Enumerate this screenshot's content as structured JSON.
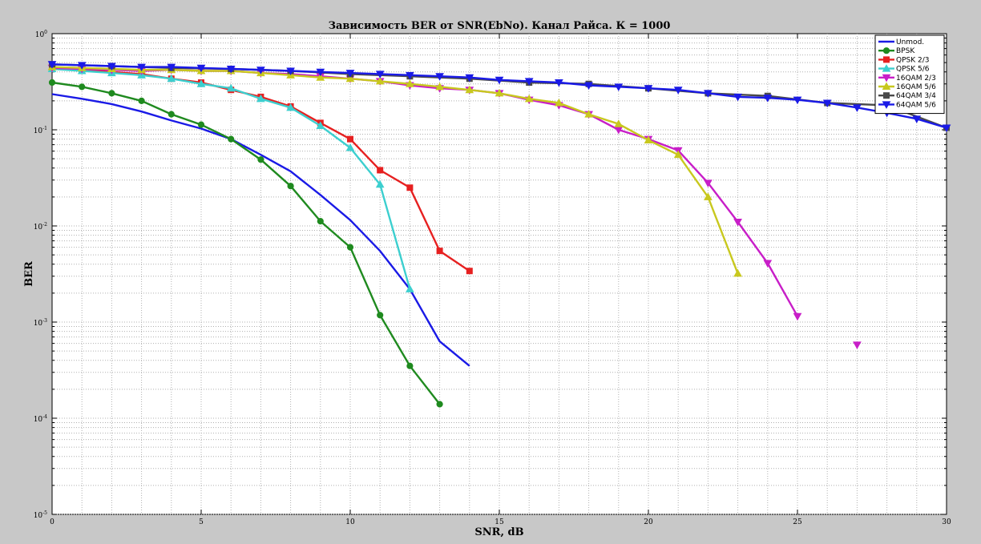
{
  "chart_data": {
    "type": "line",
    "title": "Зависимость BER от SNR(EbNo). Канал Райса. К = 1000",
    "xlabel": "SNR, dB",
    "ylabel": "BER",
    "xlim": [
      0,
      30
    ],
    "ylim": [
      1e-05,
      1
    ],
    "yscale": "log",
    "grid": true,
    "legend_position": "top-right",
    "xticks": [
      0,
      5,
      10,
      15,
      20,
      25,
      30
    ],
    "yticks": [
      {
        "value": 1,
        "base": "10",
        "exp": "0"
      },
      {
        "value": 0.1,
        "base": "10",
        "exp": "-1"
      },
      {
        "value": 0.01,
        "base": "10",
        "exp": "-2"
      },
      {
        "value": 0.001,
        "base": "10",
        "exp": "-3"
      },
      {
        "value": 0.0001,
        "base": "10",
        "exp": "-4"
      },
      {
        "value": 1e-05,
        "base": "10",
        "exp": "-5"
      }
    ],
    "series": [
      {
        "name": "Unmod.",
        "color": "#1a1ae6",
        "marker": "none",
        "x": [
          0,
          1,
          2,
          3,
          4,
          5,
          6,
          7,
          8,
          9,
          10,
          11,
          12,
          13,
          14
        ],
        "y": [
          0.235,
          0.21,
          0.185,
          0.155,
          0.125,
          0.103,
          0.08,
          0.055,
          0.037,
          0.021,
          0.0115,
          0.0055,
          0.0022,
          0.00063,
          0.00035
        ]
      },
      {
        "name": "BPSK",
        "color": "#1f8a1f",
        "marker": "circle",
        "x": [
          0,
          1,
          2,
          3,
          4,
          5,
          6,
          7,
          8,
          9,
          10,
          11,
          12,
          13
        ],
        "y": [
          0.31,
          0.28,
          0.24,
          0.2,
          0.145,
          0.113,
          0.08,
          0.049,
          0.026,
          0.0112,
          0.006,
          0.00118,
          0.00035,
          0.00014
        ]
      },
      {
        "name": "QPSK 2/3",
        "color": "#e62020",
        "marker": "square",
        "x": [
          0,
          1,
          2,
          3,
          4,
          5,
          6,
          7,
          8,
          9,
          10,
          11,
          12,
          13,
          14
        ],
        "y": [
          0.45,
          0.42,
          0.4,
          0.38,
          0.34,
          0.31,
          0.26,
          0.22,
          0.175,
          0.118,
          0.08,
          0.038,
          0.025,
          0.0055,
          0.0034
        ]
      },
      {
        "name": "QPSK 5/6",
        "color": "#3ccfcf",
        "marker": "triangle-up",
        "x": [
          0,
          1,
          2,
          3,
          4,
          5,
          6,
          7,
          8,
          9,
          10,
          11,
          12
        ],
        "y": [
          0.43,
          0.41,
          0.39,
          0.37,
          0.34,
          0.3,
          0.27,
          0.21,
          0.17,
          0.11,
          0.065,
          0.027,
          0.0022
        ]
      },
      {
        "name": "16QAM 2/3",
        "color": "#c81ec8",
        "marker": "triangle-down",
        "x": [
          0,
          1,
          2,
          3,
          4,
          5,
          6,
          7,
          8,
          9,
          10,
          11,
          12,
          13,
          14,
          15,
          16,
          17,
          18,
          19,
          20,
          21,
          22,
          23,
          24,
          25
        ],
        "y": [
          0.44,
          0.43,
          0.42,
          0.41,
          0.42,
          0.41,
          0.41,
          0.39,
          0.38,
          0.36,
          0.34,
          0.32,
          0.29,
          0.27,
          0.26,
          0.24,
          0.205,
          0.18,
          0.145,
          0.1,
          0.08,
          0.061,
          0.028,
          0.011,
          0.0041,
          0.00115
        ]
      },
      {
        "name": "16QAM 5/6",
        "color": "#c8c81e",
        "marker": "triangle-up",
        "x": [
          0,
          1,
          2,
          3,
          4,
          5,
          6,
          7,
          8,
          9,
          10,
          11,
          12,
          13,
          14,
          15,
          16,
          17,
          18,
          19,
          20,
          21,
          22,
          23
        ],
        "y": [
          0.45,
          0.44,
          0.43,
          0.42,
          0.42,
          0.41,
          0.41,
          0.39,
          0.37,
          0.35,
          0.34,
          0.32,
          0.3,
          0.28,
          0.26,
          0.24,
          0.21,
          0.19,
          0.145,
          0.115,
          0.078,
          0.055,
          0.02,
          0.0032
        ]
      },
      {
        "name": "64QAM 3/4",
        "color": "#4a4a4a",
        "marker": "square",
        "x": [
          0,
          2,
          4,
          6,
          8,
          10,
          12,
          14,
          16,
          18,
          20,
          22,
          24,
          26,
          28,
          30
        ],
        "y": [
          0.48,
          0.46,
          0.44,
          0.43,
          0.41,
          0.38,
          0.36,
          0.34,
          0.31,
          0.3,
          0.27,
          0.24,
          0.225,
          0.19,
          0.18,
          0.105
        ]
      },
      {
        "name": "64QAM 5/6",
        "color": "#1a1ae6",
        "marker": "triangle-down",
        "x": [
          0,
          1,
          2,
          3,
          4,
          5,
          6,
          7,
          8,
          9,
          10,
          11,
          12,
          13,
          14,
          15,
          16,
          17,
          18,
          19,
          20,
          21,
          22,
          23,
          24,
          25,
          26,
          27,
          28,
          29,
          30
        ],
        "y": [
          0.48,
          0.47,
          0.46,
          0.45,
          0.45,
          0.44,
          0.43,
          0.42,
          0.41,
          0.4,
          0.39,
          0.38,
          0.37,
          0.36,
          0.35,
          0.33,
          0.32,
          0.31,
          0.29,
          0.28,
          0.27,
          0.26,
          0.24,
          0.22,
          0.215,
          0.205,
          0.19,
          0.17,
          0.15,
          0.13,
          0.105
        ]
      }
    ],
    "annotations": [
      {
        "x": 27,
        "y": 0.00058,
        "color": "#c81ec8",
        "marker": "triangle-down"
      }
    ]
  }
}
